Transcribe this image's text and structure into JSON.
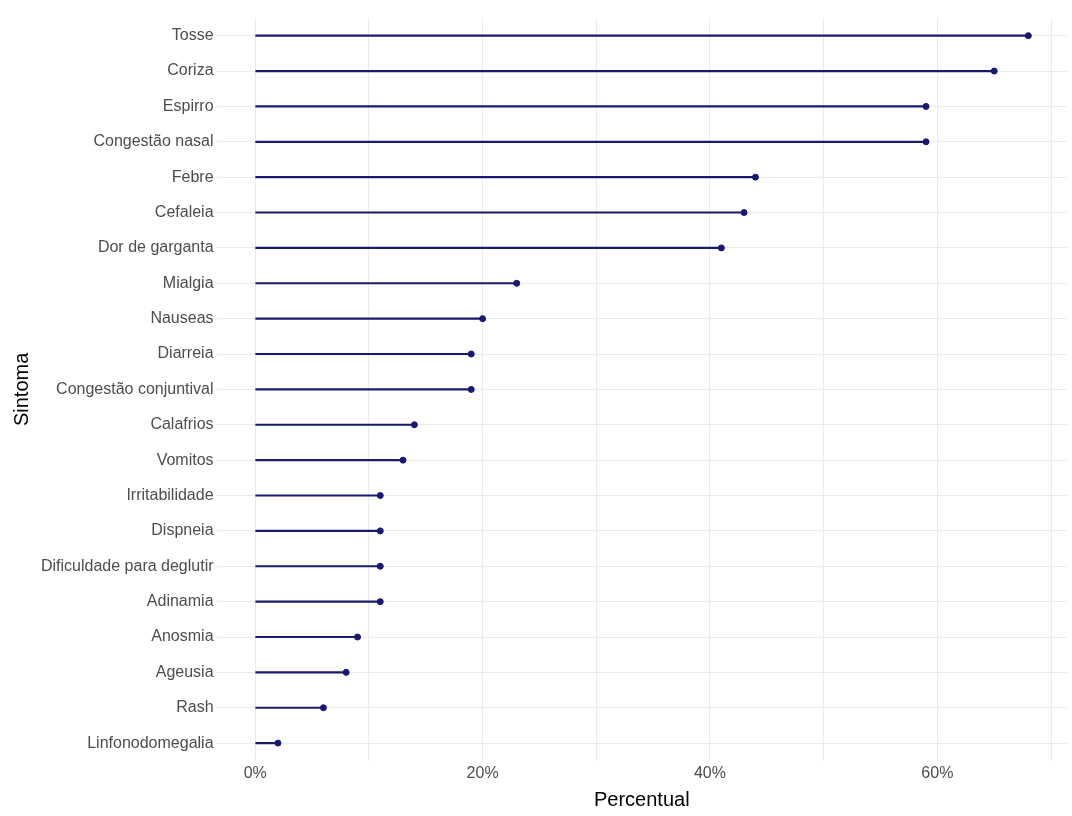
{
  "chart_data": {
    "type": "lollipop",
    "orientation": "horizontal",
    "xlabel": "Percentual",
    "ylabel": "Sintoma",
    "categories": [
      "Tosse",
      "Coriza",
      "Espirro",
      "Congestão nasal",
      "Febre",
      "Cefaleia",
      "Dor de garganta",
      "Mialgia",
      "Nauseas",
      "Diarreia",
      "Congestão conjuntival",
      "Calafrios",
      "Vomitos",
      "Irritabilidade",
      "Dispneia",
      "Dificuldade para deglutir",
      "Adinamia",
      "Anosmia",
      "Ageusia",
      "Rash",
      "Linfonodomegalia"
    ],
    "values": [
      68,
      65,
      59,
      59,
      44,
      43,
      41,
      23,
      20,
      19,
      19,
      14,
      13,
      11,
      11,
      11,
      11,
      9,
      8,
      6,
      2
    ],
    "color": "#191970",
    "marker": "circle",
    "xlim": [
      -3.4,
      71.4
    ],
    "xticks": [
      {
        "value": 0,
        "label": "0%"
      },
      {
        "value": 10,
        "label": null
      },
      {
        "value": 20,
        "label": "20%"
      },
      {
        "value": 30,
        "label": null
      },
      {
        "value": 40,
        "label": "40%"
      },
      {
        "value": 50,
        "label": null
      },
      {
        "value": 60,
        "label": "60%"
      },
      {
        "value": 70,
        "label": null
      }
    ],
    "grid": true,
    "legend": false
  }
}
